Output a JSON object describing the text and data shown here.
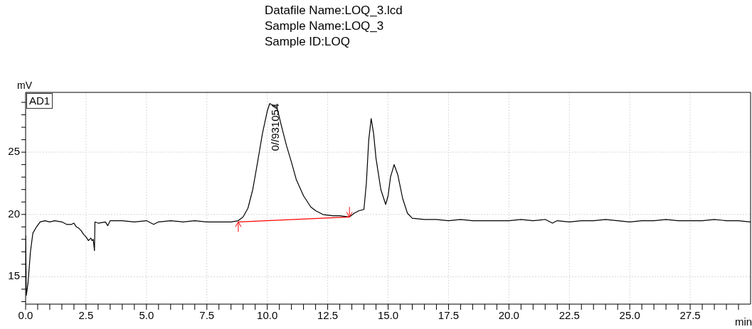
{
  "chart_data": {
    "type": "line",
    "title": "Datafile Name:LOQ_3.lcd",
    "subtitle": "Sample Name:LOQ_3\nSample ID:LOQ",
    "xlabel": "min",
    "ylabel": "mV",
    "xlim": [
      0,
      30
    ],
    "ylim": [
      12.8,
      29.8
    ],
    "xticks": [
      {
        "value": 0,
        "label": "0.0"
      },
      {
        "value": 0.5,
        "label": null
      },
      {
        "value": 1,
        "label": null
      },
      {
        "value": 1.5,
        "label": null
      },
      {
        "value": 2,
        "label": null
      },
      {
        "value": 2.5,
        "label": "2.5"
      },
      {
        "value": 3,
        "label": null
      },
      {
        "value": 3.5,
        "label": null
      },
      {
        "value": 4,
        "label": null
      },
      {
        "value": 4.5,
        "label": null
      },
      {
        "value": 5,
        "label": "5.0"
      },
      {
        "value": 5.5,
        "label": null
      },
      {
        "value": 6,
        "label": null
      },
      {
        "value": 6.5,
        "label": null
      },
      {
        "value": 7,
        "label": null
      },
      {
        "value": 7.5,
        "label": "7.5"
      },
      {
        "value": 8,
        "label": null
      },
      {
        "value": 8.5,
        "label": null
      },
      {
        "value": 9,
        "label": null
      },
      {
        "value": 9.5,
        "label": null
      },
      {
        "value": 10,
        "label": "10.0"
      },
      {
        "value": 10.5,
        "label": null
      },
      {
        "value": 11,
        "label": null
      },
      {
        "value": 11.5,
        "label": null
      },
      {
        "value": 12,
        "label": null
      },
      {
        "value": 12.5,
        "label": "12.5"
      },
      {
        "value": 13,
        "label": null
      },
      {
        "value": 13.5,
        "label": null
      },
      {
        "value": 14,
        "label": null
      },
      {
        "value": 14.5,
        "label": null
      },
      {
        "value": 15,
        "label": "15.0"
      },
      {
        "value": 15.5,
        "label": null
      },
      {
        "value": 16,
        "label": null
      },
      {
        "value": 16.5,
        "label": null
      },
      {
        "value": 17,
        "label": null
      },
      {
        "value": 17.5,
        "label": "17.5"
      },
      {
        "value": 18,
        "label": null
      },
      {
        "value": 18.5,
        "label": null
      },
      {
        "value": 19,
        "label": null
      },
      {
        "value": 19.5,
        "label": null
      },
      {
        "value": 20,
        "label": "20.0"
      },
      {
        "value": 20.5,
        "label": null
      },
      {
        "value": 21,
        "label": null
      },
      {
        "value": 21.5,
        "label": null
      },
      {
        "value": 22,
        "label": null
      },
      {
        "value": 22.5,
        "label": "22.5"
      },
      {
        "value": 23,
        "label": null
      },
      {
        "value": 23.5,
        "label": null
      },
      {
        "value": 24,
        "label": null
      },
      {
        "value": 24.5,
        "label": null
      },
      {
        "value": 25,
        "label": "25.0"
      },
      {
        "value": 25.5,
        "label": null
      },
      {
        "value": 26,
        "label": null
      },
      {
        "value": 26.5,
        "label": null
      },
      {
        "value": 27,
        "label": null
      },
      {
        "value": 27.5,
        "label": "27.5"
      },
      {
        "value": 28,
        "label": null
      },
      {
        "value": 28.5,
        "label": null
      },
      {
        "value": 29,
        "label": null
      },
      {
        "value": 29.5,
        "label": null
      }
    ],
    "yticks": [
      {
        "value": 13,
        "label": null
      },
      {
        "value": 14,
        "label": null
      },
      15,
      {
        "value": 16,
        "label": null
      },
      {
        "value": 17,
        "label": null
      },
      {
        "value": 18,
        "label": null
      },
      {
        "value": 19,
        "label": null
      },
      20,
      {
        "value": 21,
        "label": null
      },
      {
        "value": 22,
        "label": null
      },
      {
        "value": 23,
        "label": null
      },
      {
        "value": 24,
        "label": null
      },
      25,
      {
        "value": 26,
        "label": null
      },
      {
        "value": 27,
        "label": null
      },
      {
        "value": 28,
        "label": null
      },
      {
        "value": 29,
        "label": null
      }
    ],
    "grid": true,
    "legend": "top left",
    "marker": "none",
    "line_style": "solid",
    "annotations": [
      {
        "text": "0//931054",
        "x": 10.1,
        "y": 28.9
      }
    ],
    "series": [
      {
        "name": "AD1",
        "color": "#000000",
        "x": [
          0,
          0.03,
          0.1,
          0.2,
          0.3,
          0.45,
          0.6,
          0.8,
          1.0,
          1.2,
          1.5,
          1.7,
          1.9,
          2.0,
          2.1,
          2.2,
          2.3,
          2.4,
          2.5,
          2.6,
          2.7,
          2.75,
          2.8,
          2.85,
          2.87,
          3.0,
          3.3,
          3.4,
          3.5,
          4.0,
          4.5,
          5.0,
          5.3,
          5.5,
          6.0,
          6.5,
          7.0,
          7.5,
          8.0,
          8.5,
          8.8,
          9.0,
          9.2,
          9.4,
          9.6,
          9.8,
          10.0,
          10.1,
          10.2,
          10.4,
          10.6,
          10.8,
          11.0,
          11.2,
          11.5,
          11.8,
          12.0,
          12.3,
          12.7,
          13.0,
          13.4,
          13.6,
          13.8,
          14.0,
          14.1,
          14.2,
          14.3,
          14.4,
          14.5,
          14.7,
          14.9,
          15.0,
          15.1,
          15.25,
          15.4,
          15.6,
          15.8,
          16.0,
          16.5,
          17.0,
          17.5,
          18.0,
          18.5,
          19.0,
          19.5,
          20.0,
          20.5,
          21.0,
          21.5,
          21.8,
          22.0,
          22.5,
          23.0,
          23.5,
          24.0,
          24.5,
          25.0,
          25.5,
          26.0,
          26.5,
          27.0,
          27.5,
          28.0,
          28.5,
          29.0,
          29.5,
          30.0
        ],
        "values": [
          18.3,
          13.5,
          14.5,
          17.0,
          18.5,
          19.0,
          19.4,
          19.5,
          19.4,
          19.5,
          19.4,
          19.2,
          19.2,
          19.3,
          19.0,
          18.9,
          18.7,
          18.4,
          18.2,
          17.9,
          18.1,
          17.9,
          18.0,
          17.1,
          19.4,
          19.3,
          19.4,
          19.1,
          19.5,
          19.5,
          19.4,
          19.5,
          19.2,
          19.4,
          19.5,
          19.4,
          19.5,
          19.4,
          19.4,
          19.4,
          19.5,
          19.8,
          20.5,
          22.0,
          24.2,
          26.5,
          28.3,
          28.9,
          28.8,
          28.6,
          27.0,
          25.5,
          24.2,
          22.8,
          21.5,
          20.6,
          20.3,
          20.0,
          19.9,
          19.9,
          19.8,
          20.1,
          20.3,
          20.4,
          22.5,
          26.0,
          27.7,
          26.5,
          24.5,
          22.0,
          20.8,
          21.5,
          23.0,
          24.0,
          23.2,
          21.3,
          20.1,
          19.7,
          19.6,
          19.6,
          19.5,
          19.6,
          19.5,
          19.5,
          19.5,
          19.5,
          19.6,
          19.5,
          19.6,
          19.3,
          19.5,
          19.4,
          19.5,
          19.5,
          19.6,
          19.5,
          19.4,
          19.5,
          19.5,
          19.6,
          19.5,
          19.5,
          19.5,
          19.6,
          19.5,
          19.5,
          19.4
        ]
      },
      {
        "color": "#ff0000",
        "x": [
          8.8,
          13.4
        ],
        "values": [
          19.4,
          19.8
        ]
      }
    ]
  }
}
